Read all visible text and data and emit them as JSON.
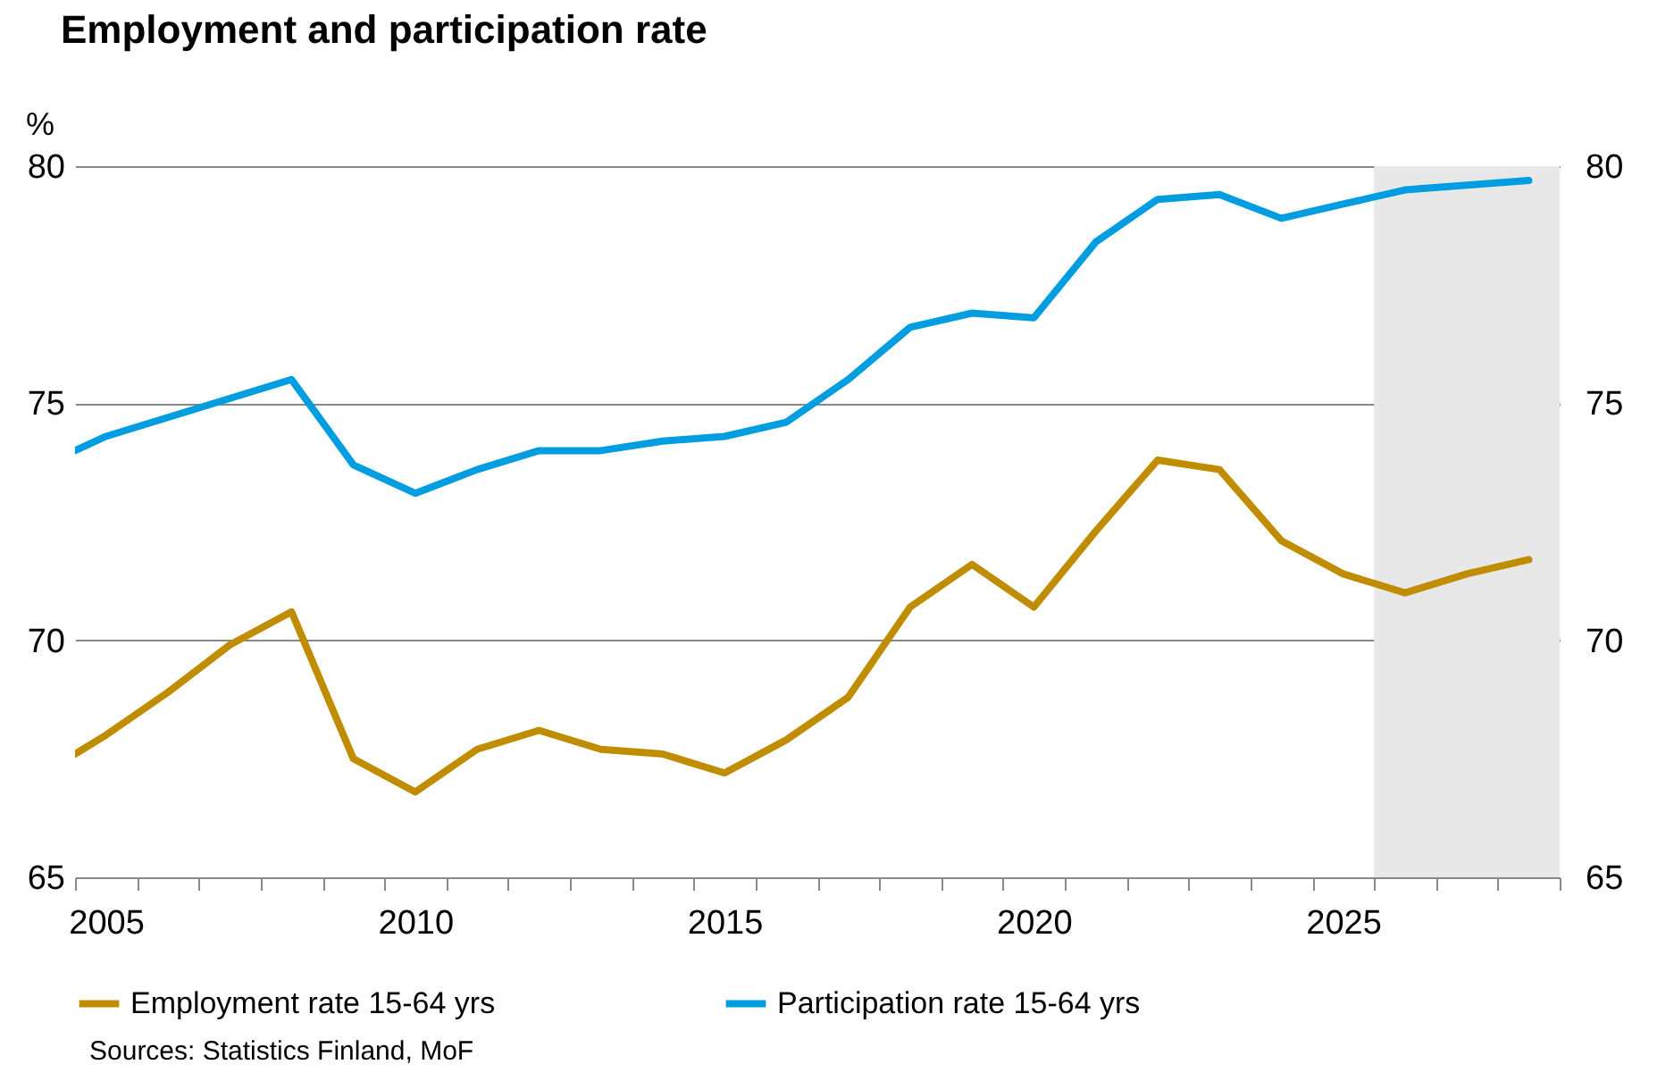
{
  "chart_data": {
    "type": "line",
    "title": "Employment and participation rate",
    "ylabel": "%",
    "x": [
      2004.5,
      2005,
      2006,
      2007,
      2008,
      2009,
      2010,
      2011,
      2012,
      2013,
      2014,
      2015,
      2016,
      2017,
      2018,
      2019,
      2020,
      2021,
      2022,
      2023,
      2024,
      2025,
      2026,
      2027,
      2028
    ],
    "series": [
      {
        "name": "Employment rate 15-64 yrs",
        "color": "#c08c00",
        "values": [
          67.6,
          68.0,
          68.9,
          69.9,
          70.6,
          67.5,
          66.8,
          67.7,
          68.1,
          67.7,
          67.6,
          67.2,
          67.9,
          68.8,
          70.7,
          71.6,
          70.7,
          72.3,
          73.8,
          73.6,
          72.1,
          71.4,
          71.0,
          71.4,
          71.7
        ]
      },
      {
        "name": "Participation rate 15-64 yrs",
        "color": "#009de0",
        "values": [
          74.0,
          74.3,
          74.7,
          75.1,
          75.5,
          73.7,
          73.1,
          73.6,
          74.0,
          74.0,
          74.2,
          74.3,
          74.6,
          75.5,
          76.6,
          76.9,
          76.8,
          78.4,
          79.3,
          79.4,
          78.9,
          79.2,
          79.5,
          79.6,
          79.7
        ]
      }
    ],
    "xlim": [
      2004.5,
      2028.5
    ],
    "xticks": [
      {
        "value": 2004.5,
        "label": null
      },
      2005,
      {
        "value": 2005.5,
        "label": null
      },
      {
        "value": 2006.5,
        "label": null
      },
      {
        "value": 2007.5,
        "label": null
      },
      {
        "value": 2008.5,
        "label": null
      },
      {
        "value": 2009.5,
        "label": null
      },
      2010,
      {
        "value": 2010.5,
        "label": null
      },
      {
        "value": 2011.5,
        "label": null
      },
      {
        "value": 2012.5,
        "label": null
      },
      {
        "value": 2013.5,
        "label": null
      },
      {
        "value": 2014.5,
        "label": null
      },
      2015,
      {
        "value": 2015.5,
        "label": null
      },
      {
        "value": 2016.5,
        "label": null
      },
      {
        "value": 2017.5,
        "label": null
      },
      {
        "value": 2018.5,
        "label": null
      },
      {
        "value": 2019.5,
        "label": null
      },
      2020,
      {
        "value": 2020.5,
        "label": null
      },
      {
        "value": 2021.5,
        "label": null
      },
      {
        "value": 2022.5,
        "label": null
      },
      {
        "value": 2023.5,
        "label": null
      },
      {
        "value": 2024.5,
        "label": null
      },
      2025,
      {
        "value": 2025.5,
        "label": null
      },
      {
        "value": 2026.5,
        "label": null
      },
      {
        "value": 2027.5,
        "label": null
      },
      {
        "value": 2028.5,
        "label": null
      }
    ],
    "ylim": [
      65,
      80
    ],
    "yticks": [
      65,
      70,
      75,
      80
    ],
    "y2lim": [
      65,
      80
    ],
    "y2ticks": [
      65,
      70,
      75,
      80
    ],
    "bands": [
      {
        "axis": "x",
        "from": 2025.5,
        "to": 2028.5,
        "color": "#e8e8e8"
      }
    ],
    "grid": "y",
    "legend": "bottom",
    "line_style": "solid",
    "annotations": [
      "Sources: Statistics Finland, MoF"
    ]
  }
}
